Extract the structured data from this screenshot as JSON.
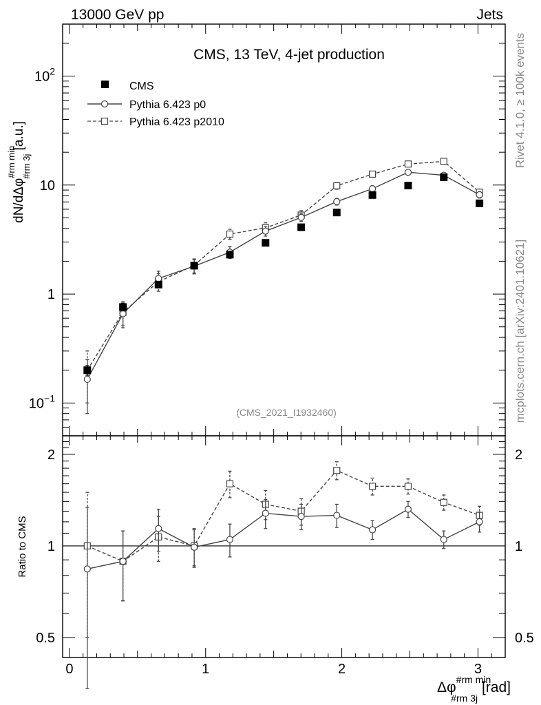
{
  "header": {
    "left_label": "13000 GeV pp",
    "right_label": "Jets"
  },
  "side_labels": {
    "rivet": "Rivet 4.1.0, ≥ 100k events",
    "mcplots": "mcplots.cern.ch [arXiv:2401.10621]"
  },
  "chart_data": [
    {
      "type": "scatter",
      "panel": "main",
      "title": "CMS, 13 TeV, 4-jet production",
      "analysis_tag": "(CMS_2021_I1932460)",
      "ylabel": {
        "main": "dN/dΔφ",
        "sup": "#rm min",
        "sub": "#rm 3j",
        "unit": " [a.u.]"
      },
      "yscale": "log",
      "ylim": [
        0.05,
        300
      ],
      "xlim": [
        -0.05,
        3.2
      ],
      "ytick_labels": [
        {
          "value": 0.1,
          "base": "10",
          "exp": "−1"
        },
        {
          "value": 1,
          "label": "1"
        },
        {
          "value": 10,
          "label": "10"
        },
        {
          "value": 100,
          "base": "10",
          "exp": "2"
        }
      ],
      "legend_position": "top-left",
      "x": [
        0.131,
        0.393,
        0.654,
        0.916,
        1.178,
        1.44,
        1.702,
        1.963,
        2.225,
        2.487,
        2.749,
        3.011
      ],
      "series": [
        {
          "name": "CMS",
          "style": "filled-square",
          "values": [
            0.2,
            0.76,
            1.22,
            1.82,
            2.3,
            2.95,
            4.1,
            5.6,
            8.1,
            9.9,
            11.8,
            6.8
          ],
          "err_low": [
            0.02,
            0.06,
            0.08,
            0.1,
            0.12,
            0.14,
            0.18,
            0.24,
            0.32,
            0.38,
            0.45,
            0.3
          ],
          "err_high": [
            0.02,
            0.06,
            0.08,
            0.1,
            0.12,
            0.14,
            0.18,
            0.24,
            0.32,
            0.38,
            0.45,
            0.3
          ]
        },
        {
          "name": "Pythia 6.423 p0",
          "style": "solid-circle",
          "values": [
            0.165,
            0.66,
            1.39,
            1.8,
            2.42,
            3.78,
            5.05,
            7.05,
            9.25,
            13.1,
            12.3,
            8.15
          ],
          "err_low": [
            0.085,
            0.17,
            0.23,
            0.27,
            0.3,
            0.38,
            0.42,
            0.5,
            0.6,
            0.7,
            0.7,
            0.55
          ],
          "err_high": [
            0.085,
            0.17,
            0.23,
            0.27,
            0.3,
            0.38,
            0.42,
            0.5,
            0.6,
            0.7,
            0.7,
            0.55
          ]
        },
        {
          "name": "Pythia 6.423 p2010",
          "style": "dashed-square",
          "values": [
            0.2,
            0.68,
            1.3,
            1.83,
            3.55,
            4.05,
            5.3,
            9.85,
            12.6,
            15.6,
            16.5,
            8.6
          ],
          "err_low": [
            0.1,
            0.17,
            0.24,
            0.27,
            0.38,
            0.45,
            0.52,
            0.7,
            0.8,
            0.9,
            0.9,
            0.6
          ],
          "err_high": [
            0.1,
            0.17,
            0.24,
            0.27,
            0.38,
            0.45,
            0.52,
            0.7,
            0.8,
            0.9,
            0.9,
            0.6
          ]
        }
      ]
    },
    {
      "type": "scatter",
      "panel": "ratio",
      "ylabel": "Ratio to CMS",
      "xlabel": {
        "main": "Δφ",
        "sup": "#rm min",
        "sub": "#rm 3j",
        "unit": " [rad]"
      },
      "yscale": "log",
      "ylim": [
        0.43,
        2.3
      ],
      "xlim": [
        -0.05,
        3.2
      ],
      "xtick_labels": [
        "0",
        "1",
        "2",
        "3"
      ],
      "ytick_labels": [
        "0.5",
        "1",
        "2"
      ],
      "reference_line": 1,
      "x": [
        0.131,
        0.393,
        0.654,
        0.916,
        1.178,
        1.44,
        1.702,
        1.963,
        2.225,
        2.487,
        2.749,
        3.011
      ],
      "series": [
        {
          "name": "Pythia 6.423 p0",
          "style": "solid-circle",
          "values": [
            0.84,
            0.89,
            1.14,
            0.99,
            1.05,
            1.28,
            1.25,
            1.26,
            1.13,
            1.32,
            1.05,
            1.2
          ],
          "err_low": [
            0.5,
            0.23,
            0.18,
            0.14,
            0.13,
            0.14,
            0.12,
            0.11,
            0.08,
            0.08,
            0.07,
            0.09
          ],
          "err_high": [
            0.5,
            0.23,
            0.18,
            0.14,
            0.13,
            0.14,
            0.12,
            0.11,
            0.08,
            0.08,
            0.07,
            0.09
          ]
        },
        {
          "name": "Pythia 6.423 p2010",
          "style": "dashed-square",
          "values": [
            1.0,
            0.89,
            1.07,
            1.0,
            1.6,
            1.37,
            1.3,
            1.77,
            1.57,
            1.57,
            1.39,
            1.26
          ],
          "err_low": [
            0.5,
            0.23,
            0.18,
            0.14,
            0.16,
            0.15,
            0.13,
            0.12,
            0.1,
            0.09,
            0.08,
            0.09
          ],
          "err_high": [
            0.5,
            0.23,
            0.18,
            0.14,
            0.16,
            0.15,
            0.13,
            0.12,
            0.1,
            0.09,
            0.08,
            0.09
          ]
        }
      ]
    }
  ]
}
